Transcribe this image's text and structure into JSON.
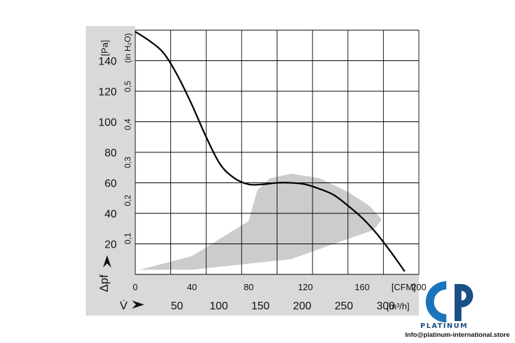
{
  "chart_data": {
    "type": "line",
    "y_axis_left": {
      "unit": "[Pa]",
      "label_symbol": "Δpf",
      "range": [
        0,
        160
      ],
      "ticks": [
        20,
        40,
        60,
        80,
        100,
        120,
        140
      ]
    },
    "y_axis_secondary": {
      "unit": "(in H₂O)",
      "ticks": [
        "0,1",
        "0,2",
        "0,3",
        "0,4",
        "0,5"
      ],
      "tick_values_pa": [
        24.9,
        49.8,
        74.7,
        99.6,
        124.5
      ]
    },
    "x_axis_primary": {
      "unit": "[CFM]",
      "range": [
        0,
        200
      ],
      "ticks": [
        0,
        40,
        80,
        120,
        160,
        200
      ]
    },
    "x_axis_secondary": {
      "label_symbol": "V̇",
      "unit": "[m³/h]",
      "ticks": [
        "50",
        "100",
        "150",
        "200",
        "250",
        "300"
      ],
      "tick_values_cfm": [
        29.4,
        58.9,
        88.3,
        117.7,
        147.1,
        176.6
      ]
    },
    "grid": true,
    "series": [
      {
        "color": "#000000",
        "x": [
          0,
          10,
          20,
          30,
          40,
          50,
          60,
          70,
          80,
          90,
          100,
          110,
          120,
          130,
          140,
          150,
          160,
          170,
          180,
          190
        ],
        "y": [
          159,
          153,
          145,
          130,
          111,
          90,
          72,
          63,
          59,
          59,
          60,
          60,
          59,
          56,
          52,
          45,
          37,
          27,
          15,
          2
        ]
      }
    ],
    "shaded_region": {
      "color": "#cccccc",
      "polygon": [
        [
          3,
          3
        ],
        [
          40,
          12
        ],
        [
          80,
          35
        ],
        [
          86,
          55
        ],
        [
          95,
          63
        ],
        [
          110,
          66
        ],
        [
          130,
          63
        ],
        [
          150,
          54
        ],
        [
          165,
          45
        ],
        [
          174,
          36
        ],
        [
          168,
          29
        ],
        [
          140,
          20
        ],
        [
          110,
          10
        ],
        [
          80,
          7
        ],
        [
          40,
          3
        ]
      ]
    }
  },
  "brand": {
    "name": "PLATINUM",
    "email": "Info@platinum-international.store",
    "accent": "#1b75bb",
    "dark": "#1b4f86"
  }
}
